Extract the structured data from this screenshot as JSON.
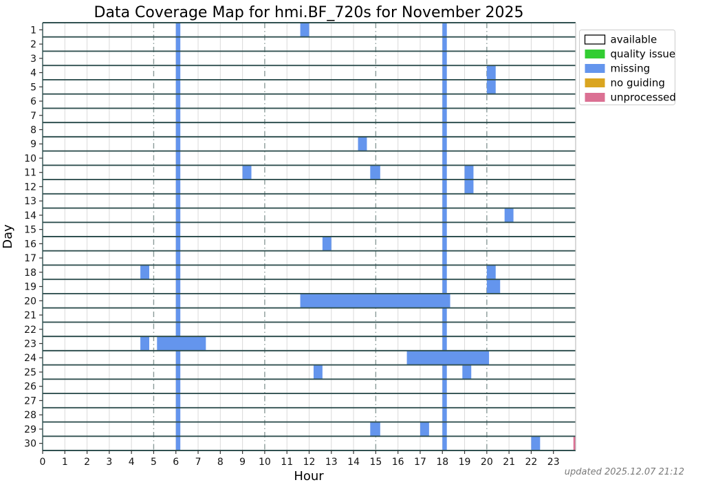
{
  "title": "Data Coverage Map for hmi.BF_720s for November 2025",
  "axes": {
    "xlabel": "Hour",
    "ylabel": "Day"
  },
  "footer": "updated 2025.12.07 21:12",
  "legend": {
    "items": [
      {
        "label": "available",
        "color": "#ffffff",
        "edge": "#000000"
      },
      {
        "label": "quality issue",
        "color": "#32cd32",
        "edge": "none"
      },
      {
        "label": "missing",
        "color": "#6495ed",
        "edge": "none"
      },
      {
        "label": "no guiding",
        "color": "#daa520",
        "edge": "none"
      },
      {
        "label": "unprocessed",
        "color": "#db7093",
        "edge": "none"
      }
    ]
  },
  "chart_data": {
    "type": "heatmap",
    "title": "Data Coverage Map for hmi.BF_720s for November 2025",
    "xlabel": "Hour",
    "ylabel": "Day",
    "xlim": [
      0,
      24
    ],
    "x_ticks": [
      0,
      1,
      2,
      3,
      4,
      5,
      6,
      7,
      8,
      9,
      10,
      11,
      12,
      13,
      14,
      15,
      16,
      17,
      18,
      19,
      20,
      21,
      22,
      23
    ],
    "days": 30,
    "y_ticks": [
      1,
      2,
      3,
      4,
      5,
      6,
      7,
      8,
      9,
      10,
      11,
      12,
      13,
      14,
      15,
      16,
      17,
      18,
      19,
      20,
      21,
      22,
      23,
      24,
      25,
      26,
      27,
      28,
      29,
      30
    ],
    "background_status": "available",
    "status_colors": {
      "available": "#ffffff",
      "quality_issue": "#32cd32",
      "missing": "#6495ed",
      "no_guiding": "#daa520",
      "unprocessed": "#db7093"
    },
    "grid": {
      "hourly_gridlines": true,
      "dashdot_hours": [
        5,
        10,
        15,
        20
      ],
      "day_separator_color": "#2f4f4f",
      "minor_grid_color": "#d9d9d9"
    },
    "daily_missing_bars": [
      [
        6.0,
        6.2
      ],
      [
        18.0,
        18.2
      ]
    ],
    "segments": [
      {
        "day": 1,
        "start": 11.6,
        "end": 12.0,
        "status": "missing"
      },
      {
        "day": 4,
        "start": 20.0,
        "end": 20.4,
        "status": "missing"
      },
      {
        "day": 5,
        "start": 20.0,
        "end": 20.4,
        "status": "missing"
      },
      {
        "day": 9,
        "start": 14.2,
        "end": 14.6,
        "status": "missing"
      },
      {
        "day": 11,
        "start": 9.0,
        "end": 9.4,
        "status": "missing"
      },
      {
        "day": 11,
        "start": 14.75,
        "end": 15.2,
        "status": "missing"
      },
      {
        "day": 11,
        "start": 19.0,
        "end": 19.4,
        "status": "missing"
      },
      {
        "day": 12,
        "start": 19.0,
        "end": 19.4,
        "status": "missing"
      },
      {
        "day": 14,
        "start": 20.8,
        "end": 21.2,
        "status": "missing"
      },
      {
        "day": 16,
        "start": 12.6,
        "end": 13.0,
        "status": "missing"
      },
      {
        "day": 18,
        "start": 4.4,
        "end": 4.8,
        "status": "missing"
      },
      {
        "day": 18,
        "start": 20.0,
        "end": 20.4,
        "status": "missing"
      },
      {
        "day": 19,
        "start": 20.0,
        "end": 20.6,
        "status": "missing"
      },
      {
        "day": 20,
        "start": 11.6,
        "end": 18.35,
        "status": "missing"
      },
      {
        "day": 23,
        "start": 4.4,
        "end": 4.8,
        "status": "missing"
      },
      {
        "day": 23,
        "start": 5.15,
        "end": 7.35,
        "status": "missing"
      },
      {
        "day": 24,
        "start": 16.4,
        "end": 20.1,
        "status": "missing"
      },
      {
        "day": 25,
        "start": 12.2,
        "end": 12.6,
        "status": "missing"
      },
      {
        "day": 25,
        "start": 18.9,
        "end": 19.3,
        "status": "missing"
      },
      {
        "day": 29,
        "start": 14.75,
        "end": 15.2,
        "status": "missing"
      },
      {
        "day": 29,
        "start": 17.0,
        "end": 17.4,
        "status": "missing"
      },
      {
        "day": 30,
        "start": 22.0,
        "end": 22.4,
        "status": "missing"
      },
      {
        "day": 30,
        "start": 23.9,
        "end": 24.0,
        "status": "unprocessed"
      }
    ]
  }
}
